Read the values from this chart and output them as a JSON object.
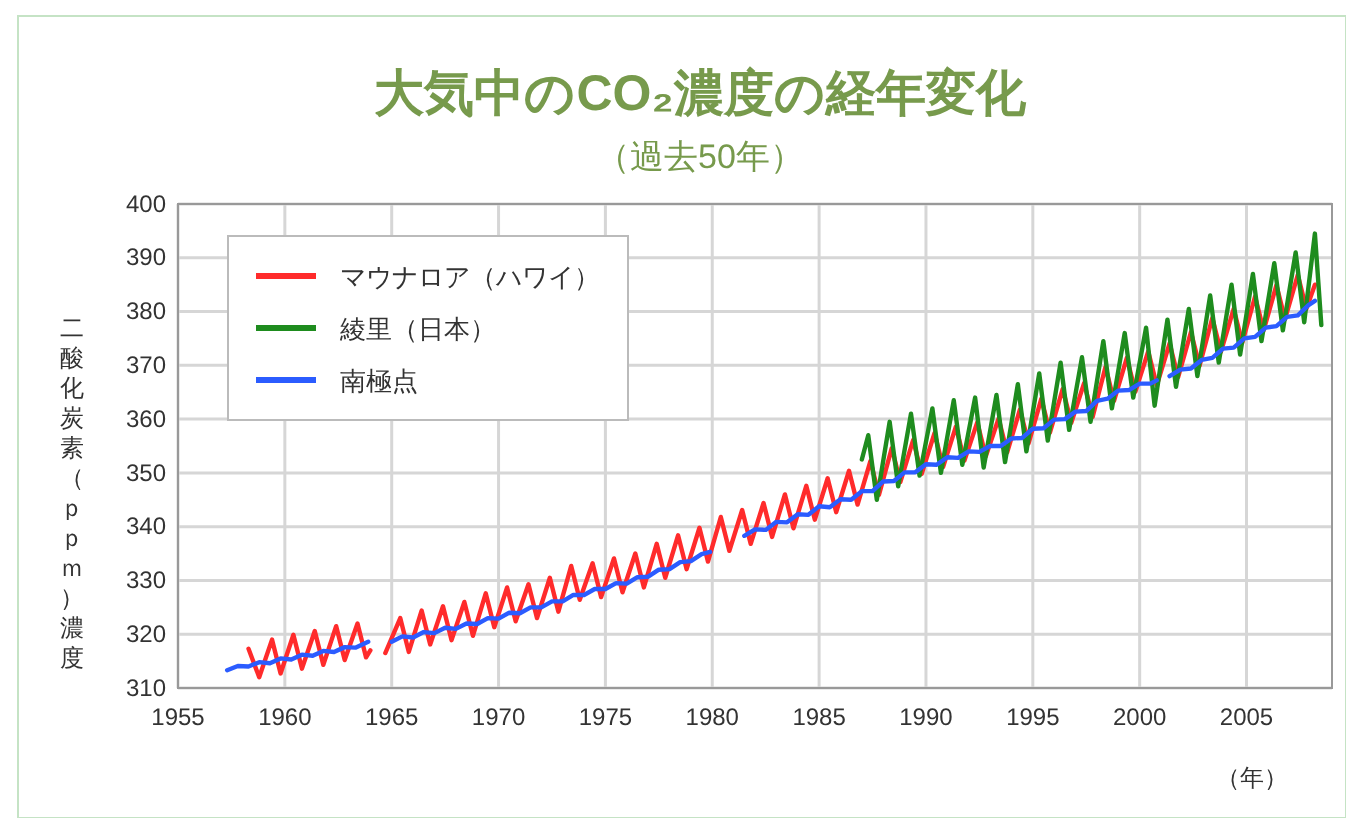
{
  "chart_data": {
    "type": "line",
    "title": "大気中のCO₂濃度の経年変化",
    "subtitle": "（過去50年）",
    "ylabel": "二酸化炭素（ｐｐｍ）濃度",
    "xlabel": "（年）",
    "xlim": [
      1955,
      2009
    ],
    "xticks": [
      1955,
      1960,
      1965,
      1970,
      1975,
      1980,
      1985,
      1990,
      1995,
      2000,
      2005
    ],
    "ylim": [
      310,
      400
    ],
    "yticks": [
      310,
      320,
      330,
      340,
      350,
      360,
      370,
      380,
      390,
      400
    ],
    "grid": true,
    "legend": "top left",
    "marker": "none",
    "line_style": "solid",
    "series": [
      {
        "name": "マウナロア（ハワイ）",
        "color": "#ff2b2b",
        "x": [
          1958.3,
          1958.8,
          1959.4,
          1959.8,
          1960.4,
          1960.8,
          1961.4,
          1961.8,
          1962.4,
          1962.8,
          1963.4,
          1963.8,
          1964.0,
          1964.3,
          1964.7,
          1965.4,
          1965.8,
          1966.4,
          1966.8,
          1967.4,
          1967.8,
          1968.4,
          1968.8,
          1969.4,
          1969.8,
          1970.4,
          1970.8,
          1971.4,
          1971.8,
          1972.4,
          1972.8,
          1973.4,
          1973.8,
          1974.4,
          1974.8,
          1975.4,
          1975.8,
          1976.4,
          1976.8,
          1977.4,
          1977.8,
          1978.4,
          1978.8,
          1979.4,
          1979.8,
          1980.4,
          1980.8,
          1981.4,
          1981.8,
          1982.4,
          1982.8,
          1983.4,
          1983.8,
          1984.4,
          1984.8,
          1985.4,
          1985.8,
          1986.4,
          1986.8,
          1987.4,
          1987.8,
          1988.4,
          1988.8,
          1989.4,
          1989.8,
          1990.4,
          1990.8,
          1991.4,
          1991.8,
          1992.4,
          1992.8,
          1993.4,
          1993.8,
          1994.4,
          1994.8,
          1995.4,
          1995.8,
          1996.4,
          1996.8,
          1997.4,
          1997.8,
          1998.4,
          1998.8,
          1999.4,
          1999.8,
          2000.4,
          2000.8,
          2001.4,
          2001.8,
          2002.4,
          2002.8,
          2003.4,
          2003.8,
          2004.4,
          2004.8,
          2005.4,
          2005.8,
          2006.4,
          2006.8,
          2007.4,
          2007.8,
          2008.2
        ],
        "values": [
          317.3,
          312.0,
          319.0,
          312.7,
          319.9,
          313.6,
          320.6,
          314.3,
          321.5,
          315.2,
          322.0,
          315.7,
          317.0,
          null,
          316.5,
          323.0,
          316.7,
          324.4,
          318.1,
          325.2,
          318.9,
          326.0,
          319.7,
          327.6,
          321.3,
          328.7,
          322.4,
          329.3,
          323.0,
          330.5,
          324.2,
          332.7,
          326.4,
          333.2,
          326.9,
          334.1,
          327.8,
          335.0,
          328.7,
          336.8,
          330.5,
          338.4,
          332.1,
          339.8,
          333.5,
          341.8,
          335.5,
          343.1,
          336.8,
          344.4,
          338.1,
          346.0,
          339.7,
          347.6,
          341.3,
          349.0,
          342.7,
          350.4,
          344.1,
          352.2,
          345.9,
          354.6,
          348.3,
          356.1,
          349.8,
          357.4,
          351.1,
          358.6,
          352.3,
          359.4,
          353.1,
          360.1,
          353.8,
          361.8,
          355.5,
          363.8,
          357.5,
          365.6,
          359.3,
          366.7,
          360.4,
          369.7,
          363.4,
          371.4,
          365.1,
          372.6,
          366.3,
          374.1,
          367.8,
          376.2,
          369.9,
          378.8,
          372.5,
          380.5,
          374.2,
          382.8,
          376.5,
          384.9,
          378.6,
          386.8,
          380.5,
          385.0
        ]
      },
      {
        "name": "綾里（日本）",
        "color": "#1e8c1e",
        "x": [
          1987.0,
          1987.3,
          1987.7,
          1988.3,
          1988.7,
          1989.3,
          1989.7,
          1990.3,
          1990.7,
          1991.3,
          1991.7,
          1992.3,
          1992.7,
          1993.3,
          1993.7,
          1994.3,
          1994.7,
          1995.3,
          1995.7,
          1996.3,
          1996.7,
          1997.3,
          1997.7,
          1998.3,
          1998.7,
          1999.3,
          1999.7,
          2000.3,
          2000.7,
          2001.3,
          2001.7,
          2002.3,
          2002.7,
          2003.3,
          2003.7,
          2004.3,
          2004.7,
          2005.3,
          2005.7,
          2006.3,
          2006.7,
          2007.3,
          2007.7,
          2008.2,
          2008.5
        ],
        "values": [
          352.5,
          357.0,
          345.0,
          359.5,
          347.5,
          361.0,
          349.5,
          362.0,
          350.0,
          363.5,
          351.5,
          364.0,
          351.0,
          364.5,
          352.0,
          366.5,
          354.0,
          368.5,
          356.0,
          370.5,
          358.0,
          371.5,
          359.5,
          374.5,
          362.0,
          376.0,
          364.0,
          377.0,
          362.5,
          378.5,
          366.0,
          380.5,
          368.0,
          383.0,
          370.5,
          385.0,
          372.0,
          387.0,
          374.5,
          389.0,
          376.5,
          391.0,
          378.0,
          394.5,
          377.5
        ]
      },
      {
        "name": "南極点",
        "color": "#2b5cff",
        "x": [
          1957.3,
          1957.8,
          1958.3,
          1958.8,
          1959.3,
          1959.8,
          1960.3,
          1960.8,
          1961.3,
          1961.8,
          1962.3,
          1962.8,
          1963.3,
          1963.9,
          1964.4,
          1965.0,
          1965.5,
          1966.0,
          1966.5,
          1967.0,
          1967.5,
          1968.0,
          1968.5,
          1969.0,
          1969.5,
          1970.0,
          1970.5,
          1971.0,
          1971.5,
          1972.0,
          1972.5,
          1973.0,
          1973.5,
          1974.0,
          1974.5,
          1975.0,
          1975.5,
          1976.0,
          1976.5,
          1977.0,
          1977.5,
          1978.0,
          1978.5,
          1979.0,
          1979.5,
          1979.9,
          1980.7,
          1981.5,
          1982.0,
          1982.5,
          1983.0,
          1983.5,
          1984.0,
          1984.5,
          1985.0,
          1985.5,
          1986.0,
          1986.5,
          1987.0,
          1987.5,
          1988.0,
          1988.5,
          1989.0,
          1989.5,
          1990.0,
          1990.5,
          1991.0,
          1991.5,
          1992.0,
          1992.5,
          1993.0,
          1993.5,
          1994.0,
          1994.5,
          1995.0,
          1995.5,
          1996.0,
          1996.5,
          1997.0,
          1997.5,
          1998.0,
          1998.5,
          1999.0,
          1999.5,
          2000.0,
          2000.5,
          2000.8,
          2001.1,
          2001.4,
          2001.9,
          2002.4,
          2002.9,
          2003.4,
          2003.9,
          2004.4,
          2004.9,
          2005.4,
          2005.9,
          2006.4,
          2006.9,
          2007.4,
          2007.9,
          2008.2
        ],
        "values": [
          313.3,
          314.1,
          314.0,
          314.8,
          314.6,
          315.5,
          315.3,
          316.2,
          316.0,
          316.9,
          316.7,
          317.6,
          317.5,
          318.6,
          null,
          318.6,
          319.6,
          319.4,
          320.4,
          320.2,
          321.2,
          321.0,
          322.0,
          321.9,
          323.0,
          322.9,
          324.0,
          323.9,
          325.0,
          325.0,
          326.1,
          326.1,
          327.3,
          327.3,
          328.4,
          328.4,
          329.5,
          329.4,
          330.6,
          330.7,
          332.0,
          332.1,
          333.4,
          333.6,
          334.9,
          335.3,
          null,
          338.3,
          339.5,
          339.4,
          340.9,
          340.8,
          342.3,
          342.2,
          343.8,
          343.6,
          345.1,
          345.0,
          346.6,
          346.6,
          348.4,
          348.5,
          350.1,
          350.1,
          351.6,
          351.5,
          352.9,
          352.8,
          354.0,
          353.9,
          355.0,
          355.0,
          356.4,
          356.5,
          358.2,
          358.3,
          359.9,
          360.0,
          361.4,
          361.5,
          363.4,
          363.8,
          365.3,
          365.4,
          366.6,
          366.6,
          367.2,
          null,
          368.0,
          369.2,
          369.4,
          371.0,
          371.4,
          373.1,
          373.3,
          375.0,
          375.3,
          377.0,
          377.3,
          379.0,
          379.3,
          381.2,
          382.0
        ]
      }
    ]
  }
}
